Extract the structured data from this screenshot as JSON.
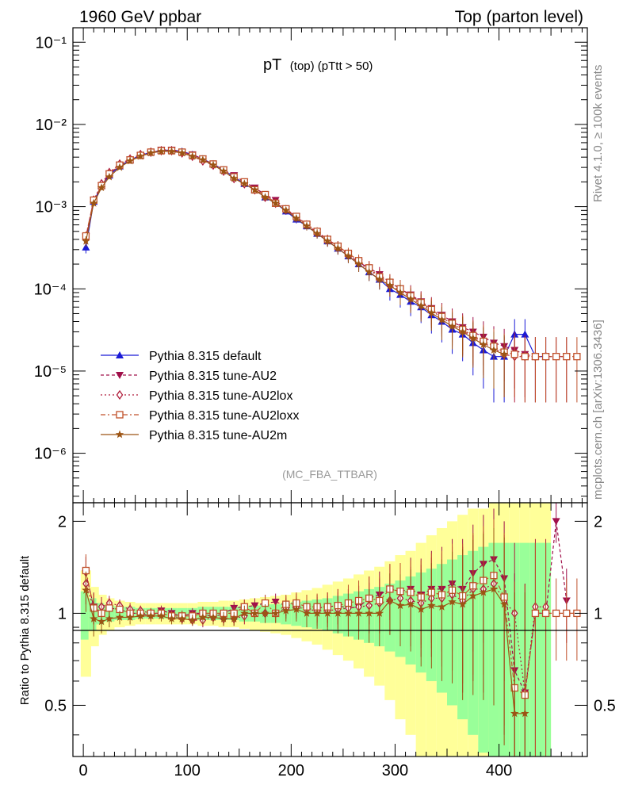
{
  "header": {
    "left": "1960 GeV ppbar",
    "right": "Top (parton level)"
  },
  "side_labels": {
    "rivet": "Rivet 4.1.0, ≥ 100k events",
    "mcplots": "mcplots.cern.ch [arXiv:1306.3436]"
  },
  "colors": {
    "default": "#1a1ad6",
    "au2": "#a0104a",
    "au2lox": "#b01e3c",
    "au2loxx": "#c0502a",
    "au2m": "#9c5414",
    "band_yellow": "#ffff99",
    "band_green": "#99ff99"
  },
  "chart_data": [
    {
      "type": "line",
      "title_main": "pT",
      "title_sub": "(top) (pTtt > 50)",
      "watermark": "(MC_FBA_TTBAR)",
      "yscale": "log",
      "xlim": [
        -10,
        485
      ],
      "ylim": [
        2.5e-07,
        0.15
      ],
      "ytick_labels": [
        "10⁻¹",
        "10⁻²",
        "10⁻³",
        "10⁻⁴",
        "10⁻⁵",
        "10⁻⁶"
      ],
      "ytick_values": [
        0.1,
        0.01,
        0.001,
        0.0001,
        1e-05,
        1e-06
      ],
      "x": [
        2.5,
        10,
        17.5,
        25,
        35,
        45,
        55,
        65,
        75,
        85,
        95,
        105,
        115,
        125,
        135,
        145,
        155,
        165,
        175,
        185,
        195,
        205,
        215,
        225,
        235,
        245,
        255,
        265,
        275,
        285,
        295,
        305,
        315,
        325,
        335,
        345,
        355,
        365,
        375,
        385,
        395,
        405,
        415,
        425,
        435,
        445,
        455,
        465,
        475
      ],
      "series": [
        {
          "name": "Pythia 8.315 default",
          "marker": "triangle-up",
          "dash": "",
          "values": [
            0.00032,
            0.00115,
            0.0018,
            0.0024,
            0.0031,
            0.0037,
            0.0042,
            0.0046,
            0.0048,
            0.0049,
            0.0047,
            0.0043,
            0.0038,
            0.0033,
            0.0028,
            0.0023,
            0.0019,
            0.0016,
            0.0013,
            0.0011,
            0.00088,
            0.0007,
            0.00058,
            0.00047,
            0.00038,
            0.00031,
            0.00025,
            0.0002,
            0.00016,
            0.00013,
            0.0001,
            8.5e-05,
            7e-05,
            6e-05,
            4.8e-05,
            4e-05,
            3.2e-05,
            2.8e-05,
            2.2e-05,
            1.8e-05,
            1.5e-05,
            1.5e-05,
            2.8e-05,
            2.8e-05,
            1.5e-05,
            1.5e-05,
            null,
            null,
            null
          ]
        },
        {
          "name": "Pythia 8.315 tune-AU2",
          "marker": "triangle-down",
          "dash": "4,3",
          "values": [
            0.00043,
            0.0012,
            0.0018,
            0.0025,
            0.0032,
            0.0037,
            0.0042,
            0.0045,
            0.0049,
            0.0049,
            0.0046,
            0.0043,
            0.0038,
            0.0032,
            0.0028,
            0.0024,
            0.002,
            0.0017,
            0.0014,
            0.0012,
            0.00093,
            0.00075,
            0.0006,
            0.00049,
            0.0004,
            0.00033,
            0.00026,
            0.00021,
            0.00018,
            0.00015,
            0.00012,
            0.0001,
            8.5e-05,
            7e-05,
            5.8e-05,
            4.8e-05,
            4e-05,
            3.4e-05,
            3e-05,
            2.6e-05,
            2.2e-05,
            2e-05,
            1.8e-05,
            1.6e-05,
            1.5e-05,
            1.5e-05,
            1.5e-05,
            1.5e-05,
            null
          ]
        },
        {
          "name": "Pythia 8.315 tune-AU2lox",
          "marker": "diamond-open",
          "dash": "2,3",
          "values": [
            0.0004,
            0.0012,
            0.0019,
            0.0026,
            0.0033,
            0.0038,
            0.0043,
            0.0046,
            0.0048,
            0.0048,
            0.0045,
            0.0041,
            0.0036,
            0.0032,
            0.0027,
            0.0022,
            0.0019,
            0.0016,
            0.0013,
            0.0011,
            0.00092,
            0.00074,
            0.0006,
            0.00048,
            0.00039,
            0.00032,
            0.00026,
            0.00021,
            0.00017,
            0.00014,
            0.00011,
            9.5e-05,
            7.8e-05,
            6.5e-05,
            5.4e-05,
            4.5e-05,
            3.7e-05,
            3.1e-05,
            2.6e-05,
            2.2e-05,
            1.9e-05,
            1.6e-05,
            1.5e-05,
            1.5e-05,
            1.5e-05,
            1.5e-05,
            null,
            null,
            null
          ]
        },
        {
          "name": "Pythia 8.315 tune-AU2loxx",
          "marker": "square-open",
          "dash": "6,3,2,3",
          "values": [
            0.00044,
            0.0012,
            0.0018,
            0.0025,
            0.0032,
            0.0037,
            0.0042,
            0.0046,
            0.0048,
            0.0048,
            0.0046,
            0.0042,
            0.0038,
            0.0033,
            0.0028,
            0.0023,
            0.002,
            0.0016,
            0.0014,
            0.0011,
            0.00094,
            0.00076,
            0.00061,
            0.0005,
            0.0004,
            0.00033,
            0.00027,
            0.00022,
            0.00018,
            0.00014,
            0.00012,
            0.0001,
            8.2e-05,
            6.8e-05,
            5.6e-05,
            4.6e-05,
            3.8e-05,
            3.2e-05,
            2.7e-05,
            2.3e-05,
            2e-05,
            1.7e-05,
            1.6e-05,
            1.5e-05,
            1.5e-05,
            1.5e-05,
            1.5e-05,
            1.5e-05,
            1.5e-05
          ]
        },
        {
          "name": "Pythia 8.315 tune-AU2m",
          "marker": "star",
          "dash": "",
          "values": [
            0.00038,
            0.0011,
            0.0017,
            0.0023,
            0.003,
            0.0036,
            0.0041,
            0.0045,
            0.0047,
            0.0047,
            0.0045,
            0.0041,
            0.0037,
            0.0032,
            0.0027,
            0.0022,
            0.0019,
            0.0016,
            0.0013,
            0.0011,
            0.0009,
            0.00072,
            0.00058,
            0.00047,
            0.00038,
            0.00031,
            0.00025,
            0.0002,
            0.00016,
            0.00013,
            0.00011,
            9e-05,
            7.5e-05,
            6.2e-05,
            5.1e-05,
            4.2e-05,
            3.5e-05,
            3e-05,
            2.5e-05,
            2.1e-05,
            1.8e-05,
            1.6e-05,
            null,
            null,
            null,
            null,
            null,
            null,
            null
          ]
        }
      ]
    },
    {
      "type": "line",
      "ylabel": "Ratio to Pythia 8.315 default",
      "xlim": [
        -10,
        485
      ],
      "ylim": [
        0.34,
        2.3
      ],
      "xtick_labels": [
        "0",
        "100",
        "200",
        "300",
        "400"
      ],
      "xtick_values": [
        0,
        100,
        200,
        300,
        400
      ],
      "ytick_labels": [
        "2",
        "1",
        "0.5"
      ],
      "ytick_values": [
        2,
        1,
        0.5
      ],
      "reference_line": 1,
      "x": [
        2.5,
        10,
        17.5,
        25,
        35,
        45,
        55,
        65,
        75,
        85,
        95,
        105,
        115,
        125,
        135,
        145,
        155,
        165,
        175,
        185,
        195,
        205,
        215,
        225,
        235,
        245,
        255,
        265,
        275,
        285,
        295,
        305,
        315,
        325,
        335,
        345,
        355,
        365,
        375,
        385,
        395,
        405,
        415,
        425,
        435,
        445,
        455,
        465,
        475
      ],
      "band_yellow_halfwidth": [
        0.38,
        0.22,
        0.15,
        0.12,
        0.1,
        0.09,
        0.08,
        0.08,
        0.08,
        0.08,
        0.08,
        0.08,
        0.09,
        0.09,
        0.1,
        0.1,
        0.11,
        0.12,
        0.13,
        0.14,
        0.15,
        0.17,
        0.19,
        0.21,
        0.24,
        0.27,
        0.3,
        0.34,
        0.38,
        0.42,
        0.48,
        0.55,
        0.6,
        0.7,
        0.8,
        0.9,
        1.0,
        1.1,
        1.2,
        1.2,
        1.3,
        1.3,
        1.3,
        1.3,
        1.3,
        1.3,
        0,
        0,
        0
      ],
      "band_green_halfwidth": [
        0.18,
        0.12,
        0.08,
        0.06,
        0.05,
        0.05,
        0.04,
        0.04,
        0.04,
        0.04,
        0.04,
        0.04,
        0.05,
        0.05,
        0.05,
        0.05,
        0.06,
        0.06,
        0.07,
        0.07,
        0.08,
        0.09,
        0.1,
        0.11,
        0.12,
        0.14,
        0.16,
        0.18,
        0.2,
        0.22,
        0.25,
        0.28,
        0.32,
        0.36,
        0.4,
        0.45,
        0.5,
        0.55,
        0.6,
        0.65,
        0.7,
        0.7,
        0.7,
        0.7,
        0.7,
        0.7,
        0,
        0,
        0
      ],
      "series": [
        {
          "name": "Pythia 8.315 tune-AU2",
          "values": [
            1.35,
            1.05,
            1.0,
            1.04,
            1.03,
            1.0,
            1.0,
            0.98,
            1.02,
            1.0,
            0.98,
            1.0,
            1.0,
            0.97,
            1.0,
            1.04,
            1.05,
            1.06,
            1.08,
            1.09,
            1.06,
            1.07,
            1.03,
            1.04,
            1.05,
            1.06,
            1.04,
            1.05,
            1.12,
            1.15,
            1.2,
            1.18,
            1.2,
            1.15,
            1.2,
            1.2,
            1.25,
            1.2,
            1.35,
            1.45,
            1.5,
            1.3,
            0.65,
            0.55,
            1.0,
            1.0,
            2.0,
            1.1,
            null
          ]
        },
        {
          "name": "Pythia 8.315 tune-AU2lox",
          "values": [
            1.25,
            1.04,
            1.05,
            1.08,
            1.06,
            1.03,
            1.02,
            1.0,
            1.0,
            0.98,
            0.96,
            0.95,
            0.95,
            0.97,
            0.96,
            0.96,
            0.98,
            1.0,
            1.0,
            1.0,
            1.04,
            1.05,
            1.03,
            1.02,
            1.02,
            1.03,
            1.04,
            1.05,
            1.06,
            1.08,
            1.1,
            1.12,
            1.1,
            1.08,
            1.12,
            1.12,
            1.15,
            1.1,
            1.2,
            1.2,
            1.25,
            1.1,
            1.0,
            0.55,
            1.05,
            1.05,
            null,
            null,
            null
          ]
        },
        {
          "name": "Pythia 8.315 tune-AU2loxx",
          "values": [
            1.38,
            1.04,
            1.0,
            1.04,
            1.03,
            1.0,
            1.0,
            1.0,
            1.0,
            0.98,
            0.98,
            0.98,
            1.0,
            1.0,
            1.0,
            1.0,
            1.05,
            1.0,
            1.08,
            1.0,
            1.07,
            1.08,
            1.05,
            1.05,
            1.05,
            1.06,
            1.08,
            1.1,
            1.12,
            1.1,
            1.2,
            1.18,
            1.17,
            1.13,
            1.17,
            1.15,
            1.19,
            1.14,
            1.23,
            1.28,
            1.33,
            1.13,
            0.57,
            0.54,
            1.0,
            1.0,
            1.0,
            1.0,
            1.0
          ]
        },
        {
          "name": "Pythia 8.315 tune-AU2m",
          "values": [
            1.19,
            0.96,
            0.94,
            0.96,
            0.97,
            0.97,
            0.98,
            0.98,
            0.98,
            0.96,
            0.96,
            0.95,
            0.97,
            0.97,
            0.96,
            0.96,
            1.0,
            1.0,
            1.0,
            1.0,
            1.02,
            1.03,
            1.0,
            1.0,
            1.0,
            1.0,
            1.0,
            1.0,
            1.0,
            1.0,
            1.1,
            1.06,
            1.07,
            1.03,
            1.06,
            1.05,
            1.09,
            1.07,
            1.14,
            1.17,
            1.2,
            1.07,
            0.47,
            0.47,
            null,
            null,
            null,
            null,
            null
          ]
        }
      ]
    }
  ]
}
